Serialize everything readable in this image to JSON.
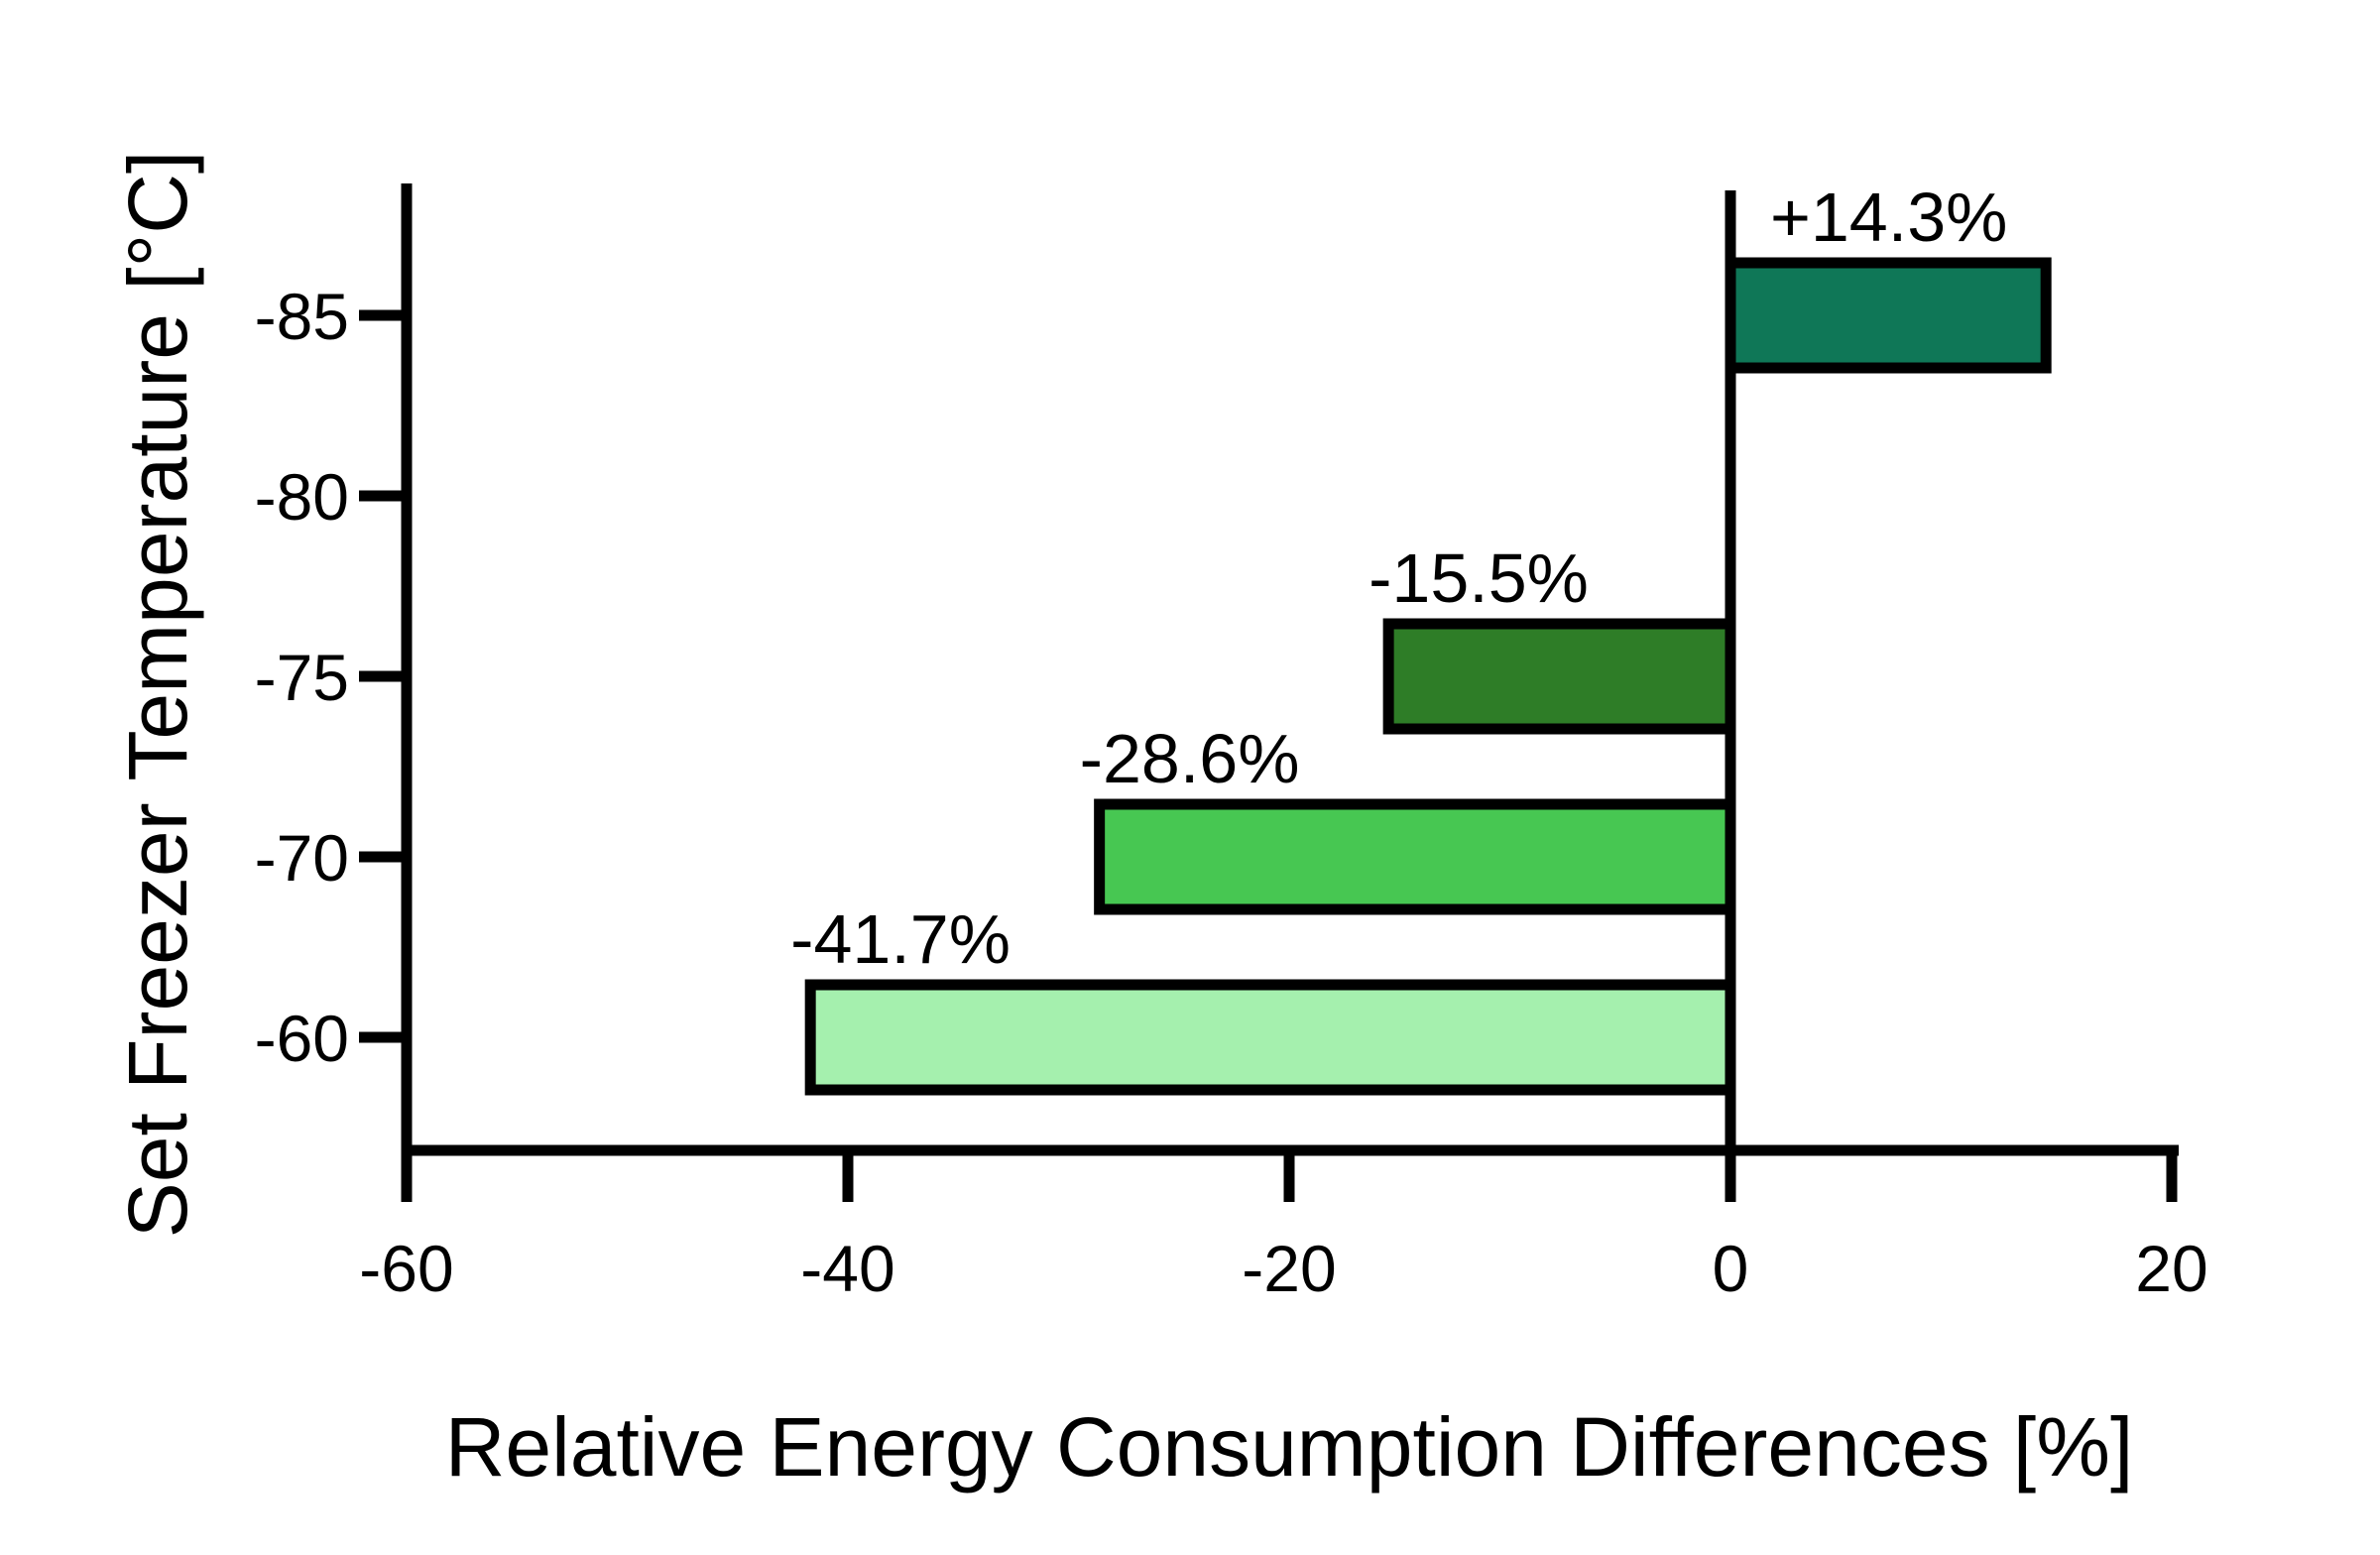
{
  "chart_data": {
    "type": "bar",
    "orientation": "horizontal",
    "xlabel": "Relative Energy Consumption Differences [%]",
    "ylabel": "Set Freezer Temperature [°C]",
    "xlim": [
      -60,
      20
    ],
    "x_ticks": [
      "-60",
      "-40",
      "-20",
      "0",
      "20"
    ],
    "categories": [
      "-85",
      "-80",
      "-75",
      "-70",
      "-60"
    ],
    "bars": [
      {
        "category": "-85",
        "value": 14.3,
        "label": "+14.3%",
        "color": "#0f7757"
      },
      {
        "category": "-75",
        "value": -15.5,
        "label": "-15.5%",
        "color": "#2e7d27"
      },
      {
        "category": "-70",
        "value": -28.6,
        "label": "-28.6%",
        "color": "#47c752"
      },
      {
        "category": "-60",
        "value": -41.7,
        "label": "-41.7%",
        "color": "#a5f0ae"
      }
    ],
    "grid": false,
    "legend": "none"
  }
}
